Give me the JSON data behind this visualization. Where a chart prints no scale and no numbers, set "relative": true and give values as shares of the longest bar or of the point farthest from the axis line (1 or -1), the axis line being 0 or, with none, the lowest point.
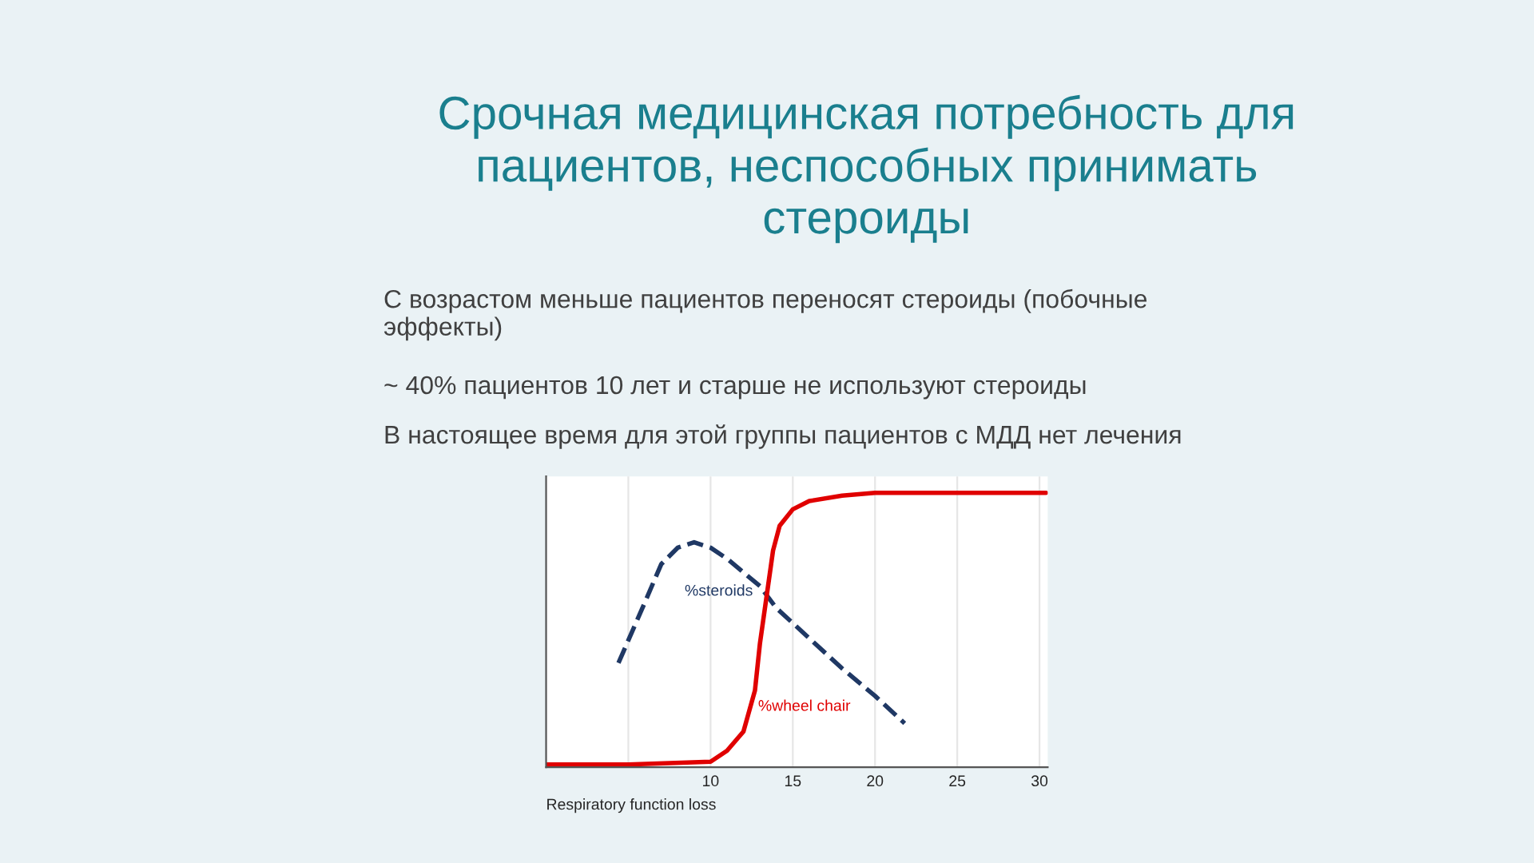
{
  "chart_data": {
    "type": "line",
    "relative": true,
    "title": "Срочная медицинская потребность для\nпациентов, неспособных принимать\nстероиды",
    "annotations": [
      "С возрастом меньше пациентов переносят стероиды (побочные\nэффекты)",
      "~ 40% пациентов 10 лет и старше не используют стероиды",
      "В настоящее время для этой группы пациентов с МДД нет лечения"
    ],
    "xlabel": "Respiratory function loss",
    "xlim": [
      0,
      30.5
    ],
    "xticks": [
      {
        "value": 5,
        "label": null
      },
      10,
      15,
      20,
      25,
      30
    ],
    "grid": "x",
    "series": [
      {
        "name": "%steroids",
        "color": "#1f3864",
        "line_style": "dashed",
        "x": [
          4.4,
          6,
          7,
          8,
          9,
          10,
          11,
          12,
          13,
          14,
          16,
          18,
          20,
          21.8
        ],
        "values": [
          0.38,
          0.6,
          0.74,
          0.8,
          0.82,
          0.8,
          0.76,
          0.71,
          0.66,
          0.58,
          0.47,
          0.36,
          0.26,
          0.16
        ]
      },
      {
        "name": "%wheel chair",
        "color": "#e00000",
        "line_style": "solid",
        "x": [
          0,
          5,
          10,
          11,
          12,
          12.7,
          13,
          13.4,
          13.8,
          14.2,
          15,
          16,
          18,
          20,
          30.4
        ],
        "values": [
          0.01,
          0.01,
          0.02,
          0.06,
          0.13,
          0.28,
          0.45,
          0.62,
          0.79,
          0.88,
          0.94,
          0.97,
          0.99,
          1,
          1
        ]
      }
    ]
  }
}
